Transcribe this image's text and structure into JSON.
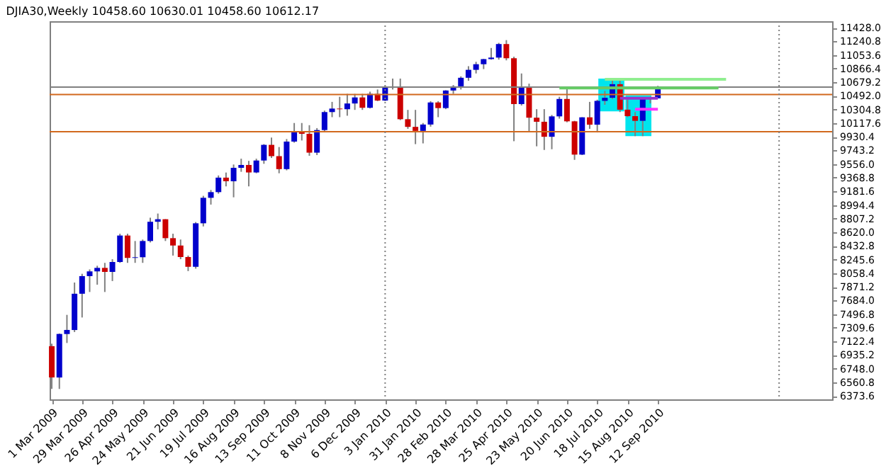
{
  "chart_data": {
    "type": "candlestick",
    "title": "DJIA30,Weekly  10458.60 10630.01 10458.60 10612.17",
    "x": [
      "2009-03-01",
      "2009-03-08",
      "2009-03-15",
      "2009-03-22",
      "2009-03-29",
      "2009-04-05",
      "2009-04-12",
      "2009-04-19",
      "2009-04-26",
      "2009-05-03",
      "2009-05-10",
      "2009-05-17",
      "2009-05-24",
      "2009-05-31",
      "2009-06-07",
      "2009-06-14",
      "2009-06-21",
      "2009-06-28",
      "2009-07-05",
      "2009-07-12",
      "2009-07-19",
      "2009-07-26",
      "2009-08-02",
      "2009-08-09",
      "2009-08-16",
      "2009-08-23",
      "2009-08-30",
      "2009-09-06",
      "2009-09-13",
      "2009-09-20",
      "2009-09-27",
      "2009-10-04",
      "2009-10-11",
      "2009-10-18",
      "2009-10-25",
      "2009-11-01",
      "2009-11-08",
      "2009-11-15",
      "2009-11-22",
      "2009-11-29",
      "2009-12-06",
      "2009-12-13",
      "2009-12-20",
      "2009-12-27",
      "2010-01-03",
      "2010-01-10",
      "2010-01-17",
      "2010-01-24",
      "2010-01-31",
      "2010-02-07",
      "2010-02-14",
      "2010-02-21",
      "2010-02-28",
      "2010-03-07",
      "2010-03-14",
      "2010-03-21",
      "2010-03-28",
      "2010-04-04",
      "2010-04-11",
      "2010-04-18",
      "2010-04-25",
      "2010-05-02",
      "2010-05-09",
      "2010-05-16",
      "2010-05-23",
      "2010-05-30",
      "2010-06-06",
      "2010-06-13",
      "2010-06-20",
      "2010-06-27",
      "2010-07-04",
      "2010-07-11",
      "2010-07-18",
      "2010-07-25",
      "2010-08-01",
      "2010-08-08",
      "2010-08-15",
      "2010-08-22",
      "2010-08-29",
      "2010-09-05",
      "2010-09-12"
    ],
    "ohlc": [
      [
        7056,
        7090,
        6470,
        6627
      ],
      [
        6626,
        7230,
        6469,
        7224
      ],
      [
        7223,
        7486,
        7100,
        7279
      ],
      [
        7278,
        7930,
        7250,
        7776
      ],
      [
        7776,
        8050,
        7450,
        8018
      ],
      [
        8018,
        8110,
        7800,
        8083
      ],
      [
        8083,
        8160,
        7900,
        8131
      ],
      [
        8131,
        8200,
        7800,
        8076
      ],
      [
        8076,
        8250,
        7950,
        8212
      ],
      [
        8212,
        8600,
        8200,
        8575
      ],
      [
        8575,
        8600,
        8200,
        8268
      ],
      [
        8268,
        8500,
        8200,
        8277
      ],
      [
        8277,
        8520,
        8200,
        8500
      ],
      [
        8500,
        8820,
        8480,
        8764
      ],
      [
        8764,
        8877,
        8660,
        8799
      ],
      [
        8799,
        8800,
        8500,
        8539
      ],
      [
        8539,
        8600,
        8300,
        8438
      ],
      [
        8438,
        8520,
        8250,
        8280
      ],
      [
        8280,
        8300,
        8087,
        8146
      ],
      [
        8146,
        8760,
        8120,
        8743
      ],
      [
        8743,
        9120,
        8700,
        9093
      ],
      [
        9093,
        9200,
        9000,
        9171
      ],
      [
        9171,
        9400,
        9150,
        9370
      ],
      [
        9370,
        9440,
        9250,
        9321
      ],
      [
        9321,
        9550,
        9100,
        9505
      ],
      [
        9505,
        9630,
        9450,
        9544
      ],
      [
        9544,
        9600,
        9250,
        9441
      ],
      [
        9441,
        9630,
        9430,
        9605
      ],
      [
        9605,
        9830,
        9560,
        9820
      ],
      [
        9820,
        9920,
        9640,
        9665
      ],
      [
        9665,
        9790,
        9430,
        9487
      ],
      [
        9487,
        9900,
        9470,
        9865
      ],
      [
        9865,
        10120,
        9850,
        9995
      ],
      [
        9995,
        10120,
        9880,
        9972
      ],
      [
        9972,
        10090,
        9670,
        9713
      ],
      [
        9713,
        10050,
        9680,
        10023
      ],
      [
        10023,
        10290,
        10000,
        10270
      ],
      [
        10270,
        10410,
        10200,
        10318
      ],
      [
        10318,
        10480,
        10200,
        10309
      ],
      [
        10309,
        10520,
        10220,
        10388
      ],
      [
        10388,
        10520,
        10300,
        10471
      ],
      [
        10471,
        10520,
        10300,
        10329
      ],
      [
        10329,
        10550,
        10320,
        10520
      ],
      [
        10520,
        10580,
        10420,
        10428
      ],
      [
        10428,
        10630,
        10420,
        10618
      ],
      [
        10618,
        10730,
        10580,
        10609
      ],
      [
        10609,
        10730,
        10160,
        10172
      ],
      [
        10172,
        10300,
        10040,
        10067
      ],
      [
        10067,
        10300,
        9830,
        10012
      ],
      [
        10012,
        10120,
        9840,
        10099
      ],
      [
        10099,
        10420,
        10070,
        10402
      ],
      [
        10402,
        10420,
        10200,
        10325
      ],
      [
        10325,
        10570,
        10310,
        10566
      ],
      [
        10566,
        10640,
        10520,
        10624
      ],
      [
        10624,
        10760,
        10580,
        10741
      ],
      [
        10741,
        10900,
        10700,
        10850
      ],
      [
        10850,
        10960,
        10800,
        10927
      ],
      [
        10927,
        11000,
        10860,
        10997
      ],
      [
        10997,
        11150,
        10990,
        11018
      ],
      [
        11018,
        11220,
        10990,
        11204
      ],
      [
        11204,
        11258,
        10980,
        11009
      ],
      [
        11009,
        11030,
        9870,
        10380
      ],
      [
        10380,
        10800,
        10360,
        10620
      ],
      [
        10620,
        10660,
        10000,
        10193
      ],
      [
        10193,
        10310,
        9800,
        10137
      ],
      [
        10137,
        10310,
        9750,
        9931
      ],
      [
        9931,
        10230,
        9760,
        10211
      ],
      [
        10211,
        10480,
        10180,
        10450
      ],
      [
        10450,
        10600,
        10130,
        10143
      ],
      [
        10143,
        10150,
        9614,
        9686
      ],
      [
        9686,
        10200,
        9680,
        10198
      ],
      [
        10198,
        10410,
        10040,
        10097
      ],
      [
        10097,
        10440,
        9990,
        10424
      ],
      [
        10424,
        10560,
        10370,
        10466
      ],
      [
        10466,
        10720,
        10450,
        10653
      ],
      [
        10653,
        10720,
        10270,
        10303
      ],
      [
        10303,
        10460,
        10200,
        10214
      ],
      [
        10214,
        10270,
        9940,
        10150
      ],
      [
        10150,
        10470,
        9940,
        10448
      ],
      [
        10448,
        10480,
        10390,
        10462
      ],
      [
        10458.6,
        10630.01,
        10458.6,
        10612.17
      ]
    ],
    "colors": [
      "#cc0000",
      "#0000cc",
      "#0000cc",
      "#0000cc",
      "#0000cc",
      "#0000cc",
      "#0000cc",
      "#cc0000",
      "#0000cc",
      "#0000cc",
      "#cc0000",
      "#0000cc",
      "#0000cc",
      "#0000cc",
      "#0000cc",
      "#cc0000",
      "#cc0000",
      "#cc0000",
      "#cc0000",
      "#0000cc",
      "#0000cc",
      "#0000cc",
      "#0000cc",
      "#cc0000",
      "#0000cc",
      "#0000cc",
      "#cc0000",
      "#0000cc",
      "#0000cc",
      "#cc0000",
      "#cc0000",
      "#0000cc",
      "#0000cc",
      "#cc0000",
      "#cc0000",
      "#0000cc",
      "#0000cc",
      "#0000cc",
      "#cc0000",
      "#0000cc",
      "#0000cc",
      "#cc0000",
      "#0000cc",
      "#cc0000",
      "#0000cc",
      "#cc0000",
      "#cc0000",
      "#cc0000",
      "#cc0000",
      "#0000cc",
      "#0000cc",
      "#cc0000",
      "#0000cc",
      "#0000cc",
      "#0000cc",
      "#0000cc",
      "#0000cc",
      "#0000cc",
      "#0000cc",
      "#0000cc",
      "#cc0000",
      "#cc0000",
      "#0000cc",
      "#cc0000",
      "#cc0000",
      "#cc0000",
      "#0000cc",
      "#0000cc",
      "#cc0000",
      "#cc0000",
      "#0000cc",
      "#cc0000",
      "#0000cc",
      "#0000cc",
      "#0000cc",
      "#cc0000",
      "#cc0000",
      "#cc0000",
      "#0000cc",
      "#0000cc",
      "#0000cc"
    ],
    "xlim": [
      "2009-02-27",
      "2011-02-20"
    ],
    "xticks": [
      {
        "value": "2009-03-01",
        "label": "1 Mar 2009"
      },
      {
        "value": "2009-03-29",
        "label": "29 Mar 2009"
      },
      {
        "value": "2009-04-26",
        "label": "26 Apr 2009"
      },
      {
        "value": "2009-05-24",
        "label": "24 May 2009"
      },
      {
        "value": "2009-06-21",
        "label": "21 Jun 2009"
      },
      {
        "value": "2009-07-19",
        "label": "19 Jul 2009"
      },
      {
        "value": "2009-08-16",
        "label": "16 Aug 2009"
      },
      {
        "value": "2009-09-13",
        "label": "13 Sep 2009"
      },
      {
        "value": "2009-10-11",
        "label": "11 Oct 2009"
      },
      {
        "value": "2009-11-08",
        "label": "8 Nov 2009"
      },
      {
        "value": "2009-12-06",
        "label": "6 Dec 2009"
      },
      {
        "value": "2010-01-03",
        "label": "3 Jan 2010"
      },
      {
        "value": "2010-01-31",
        "label": "31 Jan 2010"
      },
      {
        "value": "2010-02-28",
        "label": "28 Feb 2010"
      },
      {
        "value": "2010-03-28",
        "label": "28 Mar 2010"
      },
      {
        "value": "2010-04-25",
        "label": "25 Apr 2010"
      },
      {
        "value": "2010-05-23",
        "label": "23 May 2010"
      },
      {
        "value": "2010-06-20",
        "label": "20 Jun 2010"
      },
      {
        "value": "2010-07-18",
        "label": "18 Jul 2010"
      },
      {
        "value": "2010-08-15",
        "label": "15 Aug 2010"
      },
      {
        "value": "2010-09-12",
        "label": "12 Sep 2010"
      }
    ],
    "ylim": [
      6326,
      11517
    ],
    "yticks": [
      6373.6,
      6560.8,
      {
        "value": 6748,
        "label": "6748.0"
      },
      6935.2,
      7122.4,
      7309.6,
      7496.8,
      {
        "value": 7684,
        "label": "7684.0"
      },
      7871.2,
      8058.4,
      8245.6,
      8432.8,
      {
        "value": 8620,
        "label": "8620.0"
      },
      8807.2,
      8994.4,
      9181.6,
      9368.8,
      {
        "value": 9556,
        "label": "9556.0"
      },
      9743.2,
      9930.4,
      10117.6,
      10304.8,
      {
        "value": 10492,
        "label": "10492.0"
      },
      10679.2,
      10866.4,
      11053.6,
      11240.8,
      {
        "value": 11428,
        "label": "11428.0"
      }
    ],
    "ref_lines": [
      {
        "axis": "y",
        "value": 10612.17,
        "color": "#808080",
        "line_style": "solid"
      },
      {
        "axis": "y",
        "value": 10510,
        "color": "#d2691e",
        "line_style": "solid"
      },
      {
        "axis": "y",
        "value": 10000,
        "color": "#d2691e",
        "line_style": "solid"
      },
      {
        "axis": "x",
        "value": "2010-01-03",
        "color": "#808080",
        "line_style": "dotted"
      },
      {
        "axis": "x",
        "value": "2011-01-02",
        "color": "#808080",
        "line_style": "dotted"
      }
    ],
    "series": [
      {
        "type": "bar",
        "x": [
          "2010-07-31"
        ],
        "base": [
          10280
        ],
        "values": [
          450
        ],
        "color": "#00e5ee"
      },
      {
        "type": "bar",
        "x": [
          "2010-08-25"
        ],
        "base": [
          9940
        ],
        "values": [
          560
        ],
        "color": "#00e5ee"
      },
      {
        "type": "line",
        "x": [
          "2010-07-25",
          "2010-11-14"
        ],
        "values": [
          10720,
          10720
        ],
        "color": "#90ee90"
      },
      {
        "type": "line",
        "x": [
          "2010-06-13",
          "2010-11-07"
        ],
        "values": [
          10600,
          10600
        ],
        "color": "#66cc66"
      },
      {
        "type": "line",
        "x": [
          "2010-08-08",
          "2010-09-12"
        ],
        "values": [
          10460,
          10460
        ],
        "color": "#9933cc"
      },
      {
        "type": "line",
        "x": [
          "2010-08-22",
          "2010-09-12"
        ],
        "values": [
          10310,
          10310
        ],
        "color": "#ff33ff"
      }
    ],
    "grid": false
  }
}
